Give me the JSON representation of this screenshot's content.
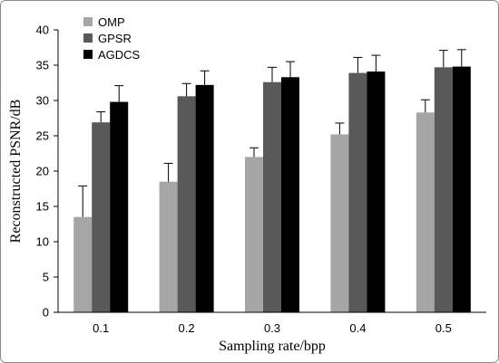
{
  "chart_data": {
    "type": "bar",
    "xlabel": "Sampling rate/bpp",
    "ylabel": "Reconstructed PSNR/dB",
    "categories": [
      "0.1",
      "0.2",
      "0.3",
      "0.4",
      "0.5"
    ],
    "ylim": [
      0,
      40
    ],
    "yticks": [
      "0",
      "5",
      "10",
      "15",
      "20",
      "25",
      "30",
      "35",
      "40"
    ],
    "grid": false,
    "legend_position": "top-left",
    "series": [
      {
        "name": "OMP",
        "color": "#a6a6a6",
        "values": [
          13.5,
          18.5,
          22.0,
          25.2,
          28.3
        ],
        "errors": [
          4.4,
          2.6,
          1.3,
          1.6,
          1.8
        ]
      },
      {
        "name": "GPSR",
        "color": "#595959",
        "values": [
          26.9,
          30.6,
          32.6,
          33.9,
          34.7
        ],
        "errors": [
          1.5,
          1.8,
          2.1,
          2.2,
          2.4
        ]
      },
      {
        "name": "AGDCS",
        "color": "#000000",
        "values": [
          29.8,
          32.2,
          33.3,
          34.1,
          34.8
        ],
        "errors": [
          2.3,
          2.0,
          2.2,
          2.3,
          2.4
        ]
      }
    ]
  }
}
